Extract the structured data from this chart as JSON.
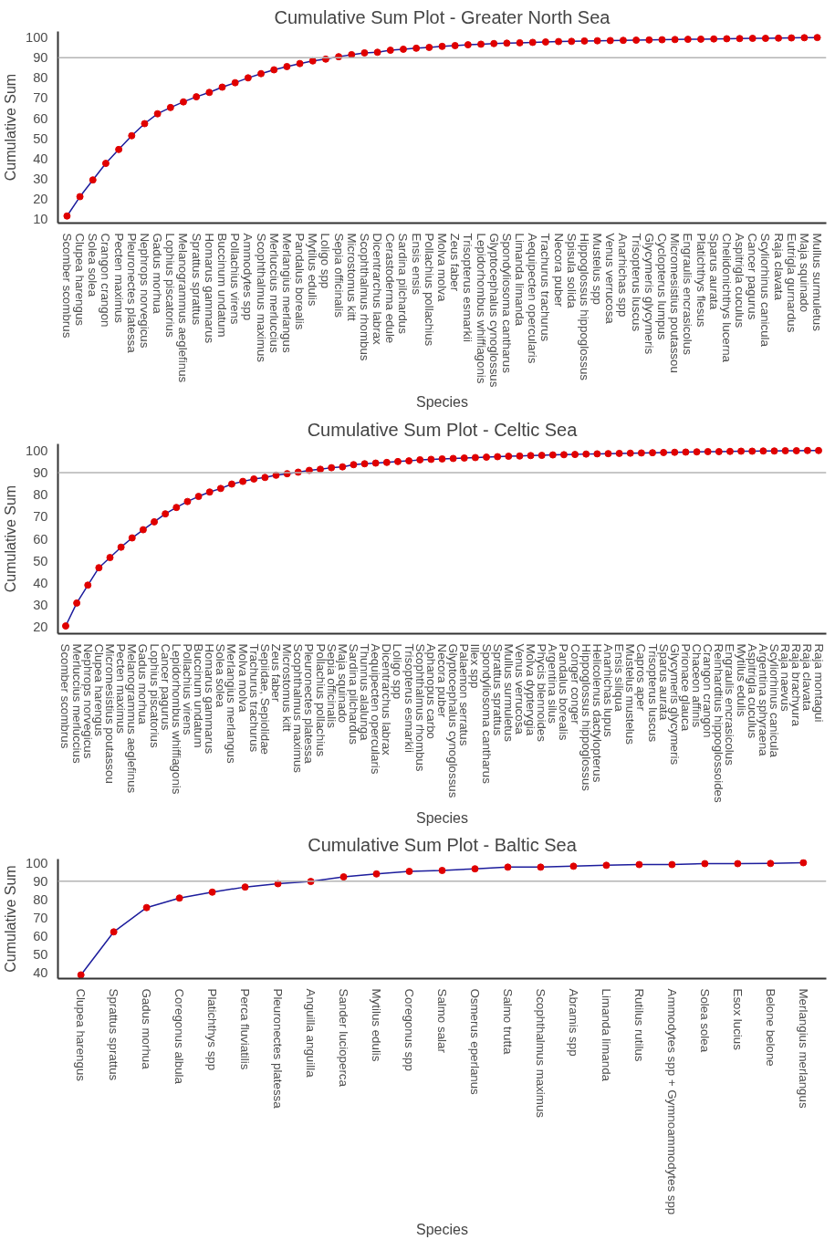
{
  "chart_data": [
    {
      "type": "line",
      "title": "Cumulative Sum Plot - Greater North Sea",
      "xlabel": "Species",
      "ylabel": "Cumulative Sum",
      "marker": "circle",
      "ylim": [
        8,
        103
      ],
      "yticks": [
        10,
        20,
        30,
        40,
        50,
        60,
        70,
        80,
        90,
        100
      ],
      "categories": [
        "Scomber scombrus",
        "Clupea harengus",
        "Solea solea",
        "Crangon crangon",
        "Pecten maximus",
        "Pleuronectes platessa",
        "Nephrops norvegicus",
        "Gadus morhua",
        "Lophius piscatorius",
        "Melanogrammus aeglefinus",
        "Sprattus sprattus",
        "Homarus gammarus",
        "Buccinum undatum",
        "Pollachius virens",
        "Ammodytes spp",
        "Scophthalmus maximus",
        "Merluccius merluccius",
        "Merlangius merlangus",
        "Pandalus borealis",
        "Mytilus edulis",
        "Loligo spp",
        "Sepia officinalis",
        "Microstomus kitt",
        "Scophthalmus rhombus",
        "Dicentrarchus labrax",
        "Cerastoderma edule",
        "Sardina pilchardus",
        "Ensis ensis",
        "Pollachius pollachius",
        "Molva molva",
        "Zeus faber",
        "Trisopterus esmarkii",
        "Lepidorhombus whiffiagonis",
        "Glyptocephalus cynoglossus",
        "Spondyliosoma cantharus",
        "Limanda limanda",
        "Aequipecten opercularis",
        "Trachurus trachurus",
        "Necora puber",
        "Spisula solida",
        "Hippoglossus hippoglossus",
        "Mustelus spp",
        "Venus verrucosa",
        "Anarhichas spp",
        "Trisopterus luscus",
        "Glycymeris glycymeris",
        "Cyclopterus lumpus",
        "Micromesistius poutassou",
        "Engraulis encrasicolus",
        "Platichthys flesus",
        "Sparus aurata",
        "Chelidonichthys lucerna",
        "Aspitrigla cuculus",
        "Cancer pagurus",
        "Scyliorhinus canicula",
        "Raja clavata",
        "Eutrigla gurnardus",
        "Maja squinado",
        "Mullus surmuletus"
      ],
      "series": [
        {
          "color": "#1c1c9c",
          "colors": [
            "#e00000",
            "#e00000",
            "#e00000",
            "#e00000",
            "#e00000",
            "#e00000",
            "#e00000",
            "#e00000",
            "#e00000",
            "#e00000",
            "#e00000",
            "#e00000",
            "#e00000",
            "#e00000",
            "#e00000",
            "#e00000",
            "#e00000",
            "#e00000",
            "#e00000",
            "#e00000",
            "#e00000",
            "#e00000",
            "#e00000",
            "#e00000",
            "#e00000",
            "#e00000",
            "#e00000",
            "#e00000",
            "#e00000",
            "#e00000",
            "#e00000",
            "#e00000",
            "#e00000",
            "#e00000",
            "#e00000",
            "#e00000",
            "#e00000",
            "#e00000",
            "#e00000",
            "#e00000",
            "#e00000",
            "#e00000",
            "#e00000",
            "#e00000",
            "#e00000",
            "#e00000",
            "#e00000",
            "#e00000",
            "#e00000",
            "#e00000",
            "#e00000",
            "#e00000",
            "#e00000",
            "#e00000",
            "#e00000",
            "#e00000",
            "#e00000",
            "#e00000",
            "#e00000"
          ],
          "values": [
            11.5,
            21.1,
            29.4,
            37.6,
            44.5,
            51.3,
            57.3,
            62.2,
            65.3,
            68.1,
            70.6,
            72.8,
            75.4,
            77.6,
            80.0,
            82.1,
            84.0,
            85.6,
            87.1,
            88.4,
            89.3,
            90.5,
            91.5,
            92.4,
            92.7,
            93.7,
            94.2,
            94.7,
            95.1,
            95.6,
            96.0,
            96.4,
            96.7,
            97.0,
            97.2,
            97.4,
            97.6,
            97.8,
            98.0,
            98.1,
            98.3,
            98.4,
            98.5,
            98.6,
            98.7,
            98.8,
            98.9,
            99.0,
            99.1,
            99.2,
            99.3,
            99.4,
            99.5,
            99.6,
            99.6,
            99.7,
            99.8,
            99.9,
            100
          ]
        }
      ],
      "ref_lines": [
        {
          "axis": "y",
          "value": 90,
          "color": "#b4b4b4"
        }
      ]
    },
    {
      "type": "line",
      "title": "Cumulative Sum Plot - Celtic Sea",
      "xlabel": "Species",
      "ylabel": "Cumulative Sum",
      "marker": "circle",
      "ylim": [
        17,
        103
      ],
      "yticks": [
        20,
        30,
        40,
        50,
        60,
        70,
        80,
        90,
        100
      ],
      "categories": [
        "Scomber scombrus",
        "Merluccius merluccius",
        "Nephrops norvegicus",
        "Clupea harengus",
        "Micromesistius poutassou",
        "Pecten maximus",
        "Melanogrammus aeglefinus",
        "Gadus morhua",
        "Lophius piscatorius",
        "Cancer pagurus",
        "Lepidorhombus whiffiagonis",
        "Pollachius virens",
        "Buccinum undatum",
        "Homarus gammarus",
        "Solea solea",
        "Merlangius merlangus",
        "Molva molva",
        "Trachurus trachurus",
        "Sepiidae, Sepiolidae",
        "Zeus faber",
        "Microstomus kitt",
        "Scophthalmus maximus",
        "Pleuronectes platessa",
        "Pollachius pollachius",
        "Sepia officinalis",
        "Maja squinado",
        "Sardina pilchardus",
        "Thunnus alalunga",
        "Aequipecten opercularis",
        "Dicentrarchus labrax",
        "Loligo spp",
        "Trisopterus esmarkii",
        "Scophthalmus rhombus",
        "Aphanopus carbo",
        "Necora puber",
        "Glyptocephalus cynoglossus",
        "Palaemon serratus",
        "Illex spp",
        "Spondyliosoma cantharus",
        "Sprattus sprattus",
        "Mullus surmuletus",
        "Venus verrucosa",
        "Molva dypterygia",
        "Phycis blennoides",
        "Argentina silus",
        "Pandalus borealis",
        "Conger conger",
        "Hippoglossus hippoglossus",
        "Helicolenus dactylopterus",
        "Anarhichas lupus",
        "Ensis siliqua",
        "Mustelus mustelus",
        "Capros aper",
        "Trisopterus luscus",
        "Sparus aurata",
        "Glycymeris glycymeris",
        "Prionace glauca",
        "Chaceon affinis",
        "Crangon crangon",
        "Reinhardtius hippoglossoides",
        "Engraulis encrasicolus",
        "Mytilus edulis",
        "Aspitrigla cuculus",
        "Argentina sphyraena",
        "Scyliorhinus canicula",
        "Raja naevus",
        "Raja brachyura",
        "Raja clavata",
        "Raja montagui"
      ],
      "series": [
        {
          "color": "#1c1c9c",
          "colors": [
            "#e00000",
            "#e00000",
            "#e00000",
            "#e00000",
            "#e00000",
            "#e00000",
            "#e00000",
            "#e00000",
            "#e00000",
            "#e00000",
            "#e00000",
            "#e00000",
            "#e00000",
            "#e00000",
            "#e00000",
            "#e00000",
            "#e00000",
            "#e00000",
            "#e00000",
            "#e00000",
            "#e00000",
            "#e00000",
            "#e00000",
            "#e00000",
            "#e00000",
            "#e00000",
            "#e00000",
            "#e00000",
            "#e00000",
            "#e00000",
            "#e00000",
            "#e00000",
            "#e00000",
            "#e00000",
            "#e00000",
            "#e00000",
            "#e00000",
            "#e00000",
            "#e00000",
            "#e00000",
            "#e00000",
            "#e00000",
            "#e00000",
            "#e00000",
            "#e00000",
            "#e00000",
            "#e00000",
            "#e00000",
            "#e00000",
            "#e00000",
            "#e00000",
            "#e00000",
            "#e00000",
            "#e00000",
            "#e00000",
            "#e00000",
            "#e00000",
            "#e00000",
            "#e00000",
            "#e00000",
            "#e00000",
            "#e00000",
            "#e00000",
            "#e00000",
            "#e00000",
            "#e00000",
            "#e00000",
            "#e00000",
            "#e00000"
          ],
          "values": [
            20.5,
            30.9,
            39.0,
            46.9,
            51.5,
            56.2,
            60.4,
            64.1,
            67.7,
            71.3,
            74.2,
            76.9,
            79.2,
            81.2,
            82.8,
            84.8,
            86.0,
            87.1,
            87.8,
            88.8,
            89.5,
            90.2,
            91.0,
            91.5,
            92.2,
            92.6,
            93.6,
            94.0,
            94.3,
            94.6,
            95.0,
            95.3,
            95.8,
            96.0,
            96.2,
            96.4,
            96.6,
            96.8,
            97.0,
            97.2,
            97.4,
            97.5,
            97.7,
            97.8,
            98.0,
            98.1,
            98.2,
            98.4,
            98.5,
            98.6,
            98.7,
            98.8,
            98.9,
            99.0,
            99.1,
            99.2,
            99.3,
            99.4,
            99.5,
            99.5,
            99.6,
            99.7,
            99.7,
            99.8,
            99.8,
            99.9,
            99.9,
            100,
            100
          ]
        }
      ],
      "ref_lines": [
        {
          "axis": "y",
          "value": 90,
          "color": "#b4b4b4"
        }
      ]
    },
    {
      "type": "line",
      "title": "Cumulative Sum Plot - Baltic Sea",
      "xlabel": "Species",
      "ylabel": "Cumulative Sum",
      "marker": "circle",
      "ylim": [
        37,
        102
      ],
      "yticks": [
        40,
        50,
        60,
        70,
        80,
        90,
        100
      ],
      "categories": [
        "Clupea harengus",
        "Sprattus sprattus",
        "Gadus morhua",
        "Coregonus albula",
        "Platichthys spp",
        "Perca fluviatilis",
        "Pleuronectes platessa",
        "Anguilla anguilla",
        "Sander lucioperca",
        "Mytilus edulis",
        "Coregonus spp",
        "Salmo salar",
        "Osmerus eperlanus",
        "Salmo trutta",
        "Scophthalmus maximus",
        "Abramis spp",
        "Limanda limanda",
        "Rutilus rutilus",
        "Ammodytes spp + Gymnoammodytes spp",
        "Solea solea",
        "Esox lucius",
        "Belone belone",
        "Merlangius merlangus"
      ],
      "series": [
        {
          "color": "#1c1c9c",
          "colors": [
            "#e00000",
            "#e00000",
            "#e00000",
            "#e00000",
            "#e00000",
            "#e00000",
            "#e00000",
            "#e00000",
            "#e00000",
            "#e00000",
            "#e00000",
            "#e00000",
            "#e00000",
            "#e00000",
            "#e00000",
            "#e00000",
            "#e00000",
            "#e00000",
            "#e00000",
            "#e00000",
            "#e00000",
            "#e00000",
            "#e00000"
          ],
          "values": [
            39,
            62.4,
            75.6,
            80.8,
            84.0,
            86.8,
            88.6,
            89.8,
            92.3,
            93.9,
            95.3,
            95.8,
            96.7,
            97.6,
            97.6,
            98.1,
            98.6,
            99.0,
            99.0,
            99.5,
            99.5,
            99.6,
            100
          ]
        }
      ],
      "ref_lines": [
        {
          "axis": "y",
          "value": 90,
          "color": "#b4b4b4"
        }
      ]
    }
  ]
}
